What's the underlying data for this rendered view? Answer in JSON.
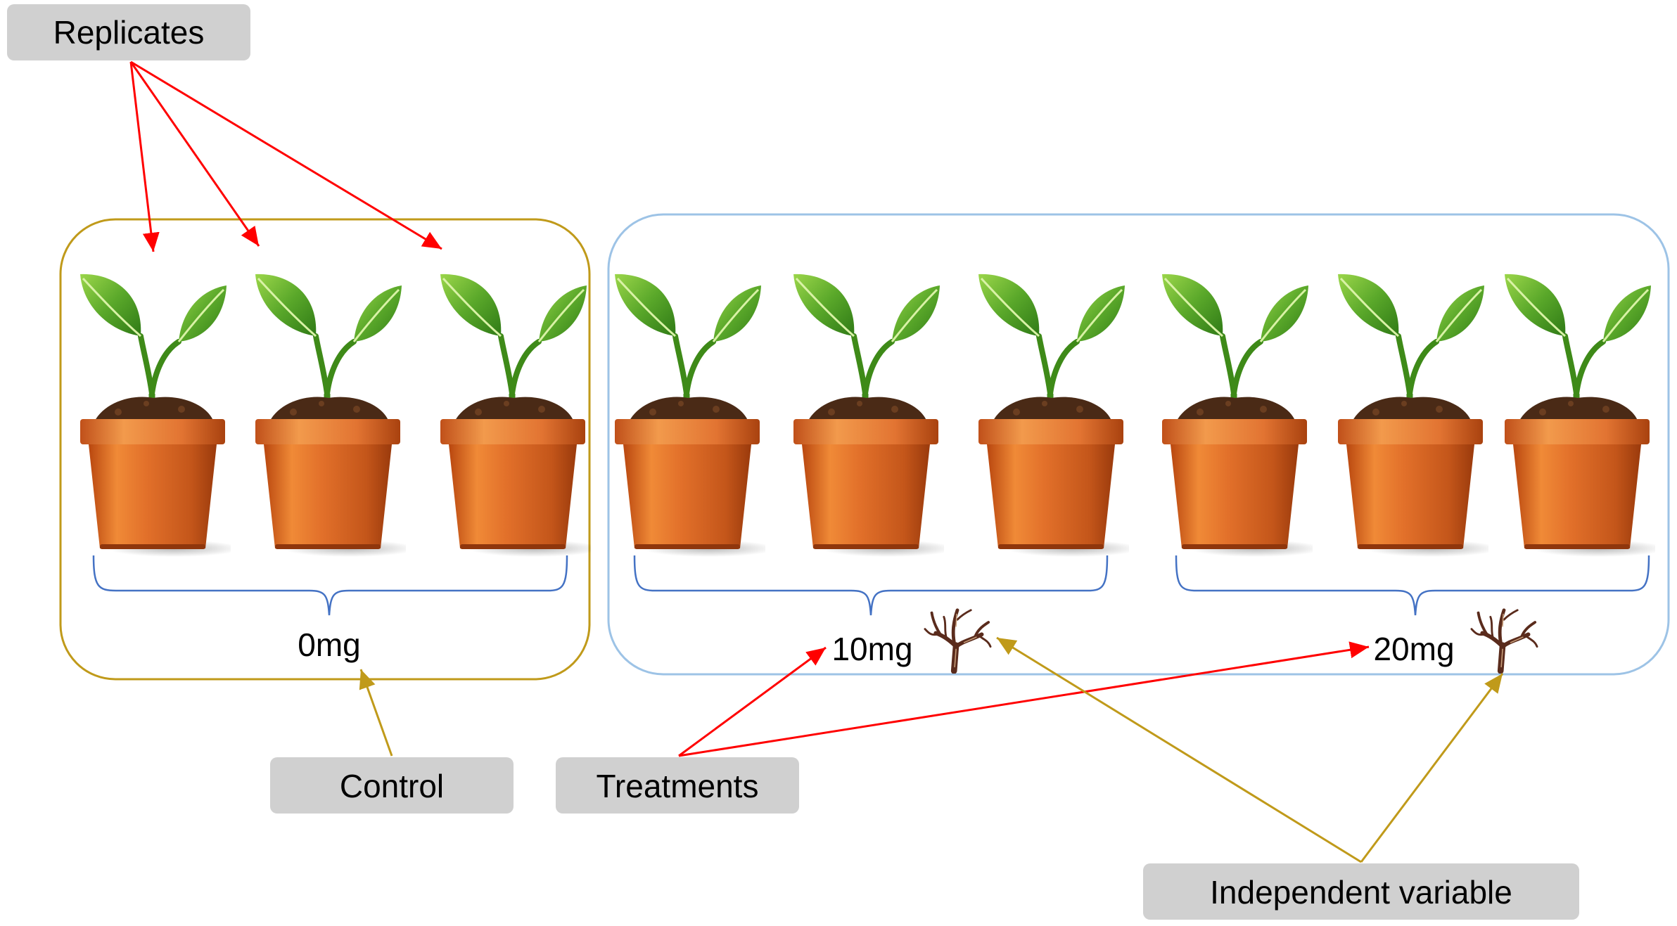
{
  "labels": {
    "replicates": "Replicates",
    "control": "Control",
    "treatments": "Treatments",
    "independent_variable": "Independent variable"
  },
  "doses": {
    "control": "0mg",
    "treatment_1": "10mg",
    "treatment_2": "20mg"
  },
  "groups": [
    {
      "name": "control",
      "dose": "0mg",
      "plant_count": 3,
      "border_color": "#c09a1a"
    },
    {
      "name": "treatments",
      "dose_groups": [
        "10mg",
        "20mg"
      ],
      "plant_count": 6,
      "border_color": "#9dc3e6"
    }
  ],
  "colors": {
    "label_box": "#d0d0d0",
    "replicate_arrows": "#ff0000",
    "treatment_arrows": "#ff0000",
    "control_arrow": "#c09a1a",
    "independent_variable_arrows": "#c09a1a",
    "brace": "#4472c4",
    "pot": "#e2702a",
    "leaf": "#5aa82a"
  },
  "icons": {
    "plant": "potted-seedling-icon",
    "root": "dried-root-icon"
  }
}
